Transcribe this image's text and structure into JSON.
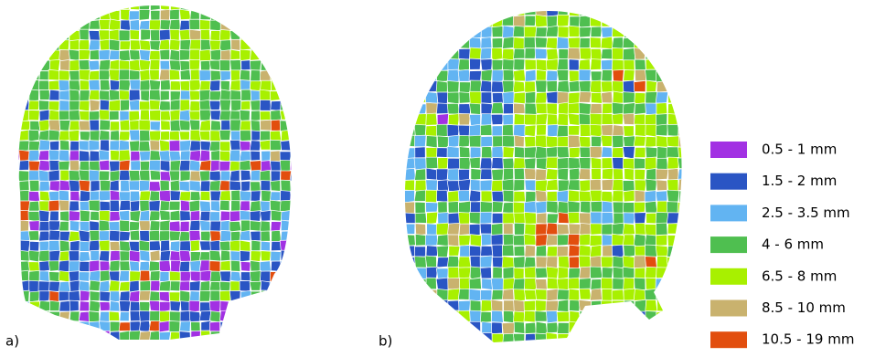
{
  "panels": [
    {
      "label": "a)"
    },
    {
      "label": "b)"
    }
  ],
  "legend": [
    {
      "label": "0.5 - 1 mm",
      "color": "#a231e3"
    },
    {
      "label": "1.5 - 2 mm",
      "color": "#2a55c4"
    },
    {
      "label": "2.5 - 3.5 mm",
      "color": "#62b4f2"
    },
    {
      "label": "4 - 6 mm",
      "color": "#4fbf50"
    },
    {
      "label": "6.5 - 8 mm",
      "color": "#a8f000"
    },
    {
      "label": "8.5 - 10 mm",
      "color": "#c9b26e"
    },
    {
      "label": "10.5 - 19 mm",
      "color": "#e24e0e"
    }
  ]
}
